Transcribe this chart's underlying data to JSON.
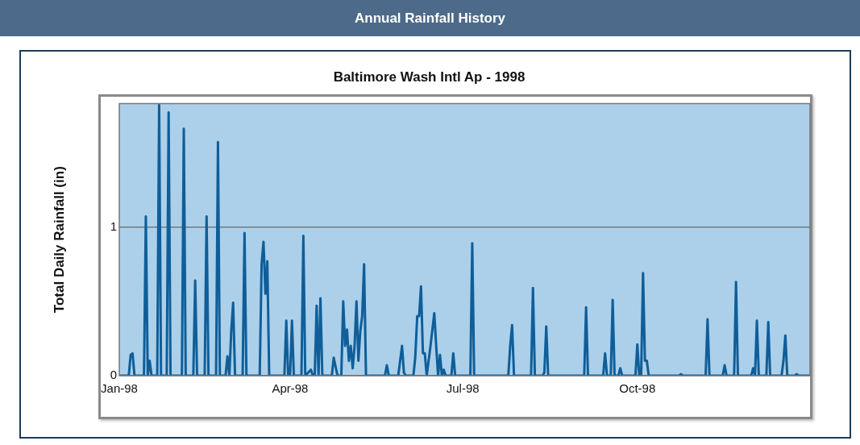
{
  "chart_data": {
    "type": "line",
    "title": "Annual Rainfall History",
    "subtitle": "Baltimore Wash Intl Ap - 1998",
    "ylabel": "Total Daily Rainfall (in)",
    "xlim": [
      "1998-01-01",
      "1998-12-31"
    ],
    "xticks": [
      {
        "value": "1998-01-01",
        "label": "Jan-98"
      },
      {
        "value": "1998-04-01",
        "label": "Apr-98"
      },
      {
        "value": "1998-07-01",
        "label": "Jul-98"
      },
      {
        "value": "1998-10-01",
        "label": "Oct-98"
      }
    ],
    "ylim": [
      0,
      1.83
    ],
    "yticks": [
      0,
      1
    ],
    "grid": "y",
    "legend": false,
    "series": [
      {
        "color": "#0f5e99",
        "x": [
          "1998-01-01",
          "1998-01-06",
          "1998-01-07",
          "1998-01-08",
          "1998-01-09",
          "1998-01-14",
          "1998-01-15",
          "1998-01-16",
          "1998-01-17",
          "1998-01-18",
          "1998-01-21",
          "1998-01-22",
          "1998-01-23",
          "1998-01-26",
          "1998-01-27",
          "1998-01-28",
          "1998-02-03",
          "1998-02-04",
          "1998-02-05",
          "1998-02-09",
          "1998-02-10",
          "1998-02-11",
          "1998-02-15",
          "1998-02-16",
          "1998-02-17",
          "1998-02-21",
          "1998-02-22",
          "1998-02-23",
          "1998-02-26",
          "1998-02-27",
          "1998-02-28",
          "1998-03-01",
          "1998-03-02",
          "1998-03-03",
          "1998-03-07",
          "1998-03-08",
          "1998-03-09",
          "1998-03-16",
          "1998-03-17",
          "1998-03-18",
          "1998-03-19",
          "1998-03-20",
          "1998-03-21",
          "1998-03-29",
          "1998-03-30",
          "1998-03-31",
          "1998-04-01",
          "1998-04-02",
          "1998-04-03",
          "1998-04-07",
          "1998-04-08",
          "1998-04-09",
          "1998-04-12",
          "1998-04-13",
          "1998-04-14",
          "1998-04-15",
          "1998-04-16",
          "1998-04-17",
          "1998-04-18",
          "1998-04-23",
          "1998-04-24",
          "1998-04-26",
          "1998-04-28",
          "1998-04-29",
          "1998-04-30",
          "1998-05-01",
          "1998-05-02",
          "1998-05-03",
          "1998-05-04",
          "1998-05-05",
          "1998-05-06",
          "1998-05-07",
          "1998-05-08",
          "1998-05-09",
          "1998-05-10",
          "1998-05-11",
          "1998-05-21",
          "1998-05-22",
          "1998-05-23",
          "1998-05-28",
          "1998-05-30",
          "1998-05-31",
          "1998-06-01",
          "1998-06-05",
          "1998-06-06",
          "1998-06-07",
          "1998-06-08",
          "1998-06-09",
          "1998-06-10",
          "1998-06-11",
          "1998-06-12",
          "1998-06-14",
          "1998-06-16",
          "1998-06-17",
          "1998-06-18",
          "1998-06-19",
          "1998-06-20",
          "1998-06-21",
          "1998-06-22",
          "1998-06-25",
          "1998-06-26",
          "1998-06-27",
          "1998-07-05",
          "1998-07-06",
          "1998-07-07",
          "1998-07-25",
          "1998-07-26",
          "1998-07-27",
          "1998-07-28",
          "1998-08-06",
          "1998-08-07",
          "1998-08-08",
          "1998-08-12",
          "1998-08-13",
          "1998-08-14",
          "1998-08-15",
          "1998-09-03",
          "1998-09-04",
          "1998-09-05",
          "1998-09-13",
          "1998-09-14",
          "1998-09-15",
          "1998-09-17",
          "1998-09-18",
          "1998-09-19",
          "1998-09-21",
          "1998-09-22",
          "1998-09-23",
          "1998-09-30",
          "1998-10-01",
          "1998-10-02",
          "1998-10-03",
          "1998-10-04",
          "1998-10-05",
          "1998-10-06",
          "1998-10-07",
          "1998-10-23",
          "1998-10-24",
          "1998-10-25",
          "1998-11-06",
          "1998-11-07",
          "1998-11-08",
          "1998-11-15",
          "1998-11-16",
          "1998-11-17",
          "1998-11-21",
          "1998-11-22",
          "1998-11-23",
          "1998-11-30",
          "1998-12-01",
          "1998-12-02",
          "1998-12-03",
          "1998-12-04",
          "1998-12-08",
          "1998-12-09",
          "1998-12-10",
          "1998-12-16",
          "1998-12-17",
          "1998-12-18",
          "1998-12-19",
          "1998-12-23",
          "1998-12-24",
          "1998-12-25",
          "1998-12-31"
        ],
        "values": [
          0,
          0,
          0.14,
          0.15,
          0,
          0,
          1.07,
          0,
          0.1,
          0,
          0,
          1.82,
          0,
          0,
          1.77,
          0,
          0,
          1.66,
          0,
          0,
          0.64,
          0,
          0,
          1.07,
          0,
          0,
          1.57,
          0,
          0,
          0.13,
          0,
          0.3,
          0.49,
          0,
          0,
          0.96,
          0,
          0,
          0.75,
          0.9,
          0.55,
          0.77,
          0,
          0,
          0.37,
          0,
          0,
          0.37,
          0,
          0,
          0.94,
          0,
          0.04,
          0,
          0,
          0.47,
          0,
          0.52,
          0,
          0,
          0.12,
          0,
          0,
          0.5,
          0.2,
          0.31,
          0.1,
          0.2,
          0.05,
          0.2,
          0.5,
          0.1,
          0.3,
          0.4,
          0.75,
          0,
          0,
          0.07,
          0,
          0,
          0.2,
          0.02,
          0,
          0,
          0.13,
          0.4,
          0.4,
          0.6,
          0.15,
          0.15,
          0,
          0.2,
          0.42,
          0.2,
          0,
          0.14,
          0,
          0.04,
          0,
          0,
          0.15,
          0,
          0,
          0.89,
          0,
          0,
          0.2,
          0.34,
          0,
          0,
          0.59,
          0,
          0,
          0.02,
          0.33,
          0,
          0,
          0.46,
          0,
          0,
          0.15,
          0,
          0,
          0.51,
          0,
          0,
          0.05,
          0,
          0,
          0.21,
          0,
          0,
          0.69,
          0.1,
          0.1,
          0,
          0,
          0.01,
          0,
          0,
          0.38,
          0,
          0,
          0.07,
          0,
          0,
          0.63,
          0,
          0,
          0.05,
          0,
          0.37,
          0,
          0,
          0.36,
          0,
          0,
          0.1,
          0.27,
          0,
          0,
          0.01,
          0,
          0
        ]
      }
    ]
  }
}
